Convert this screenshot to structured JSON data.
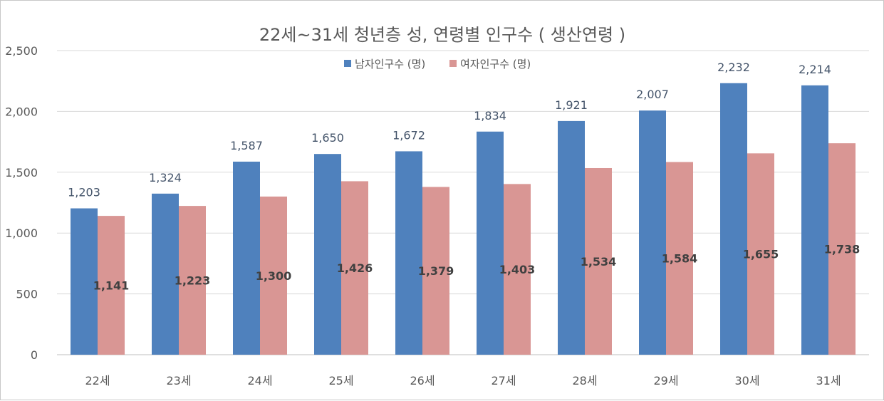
{
  "chart_data": {
    "type": "bar",
    "title": "22세~31세 청년층 성, 연령별 인구수 ( 생산연령 )",
    "categories": [
      "22세",
      "23세",
      "24세",
      "25세",
      "26세",
      "27세",
      "28세",
      "29세",
      "30세",
      "31세"
    ],
    "series": [
      {
        "name": "남자인구수 (명)",
        "color": "#4f81bd",
        "values": [
          1203,
          1324,
          1587,
          1650,
          1672,
          1834,
          1921,
          2007,
          2232,
          2214
        ]
      },
      {
        "name": "여자인구수 (명)",
        "color": "#d99694",
        "values": [
          1141,
          1223,
          1300,
          1426,
          1379,
          1403,
          1534,
          1584,
          1655,
          1738
        ]
      }
    ],
    "ylim": [
      0,
      2500
    ],
    "yticks": [
      0,
      500,
      1000,
      1500,
      2000,
      2500
    ],
    "ytick_labels": [
      "0",
      "500",
      "1,000",
      "1,500",
      "2,000",
      "2,500"
    ],
    "grid": true,
    "legend": "top-center"
  }
}
